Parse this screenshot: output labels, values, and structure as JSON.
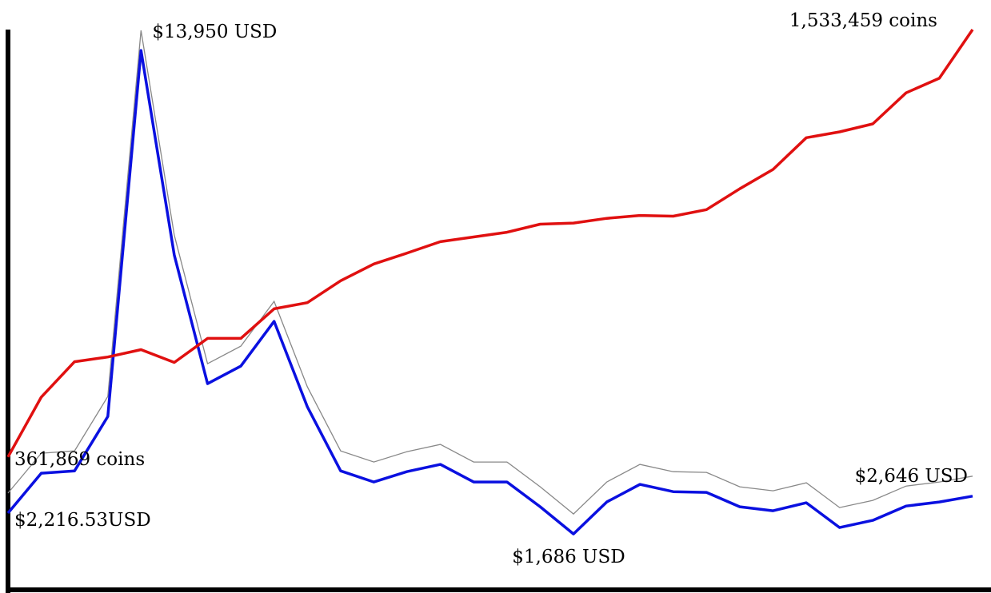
{
  "chart_data": {
    "type": "line",
    "categories": [
      null,
      null,
      null,
      null,
      null,
      null,
      null,
      null,
      null,
      null,
      null,
      null,
      null,
      null,
      null,
      null,
      null,
      null,
      null,
      null,
      null,
      null,
      null,
      null,
      null,
      null,
      null,
      null,
      null,
      null
    ],
    "series": [
      {
        "color": "#e01010",
        "axis": "y2",
        "values": [
          361869,
          526000,
          623000,
          636000,
          656000,
          621000,
          687000,
          687000,
          768000,
          785000,
          845000,
          891000,
          921000,
          952000,
          965000,
          978000,
          1000000,
          1003000,
          1016000,
          1024000,
          1022000,
          1040000,
          1097000,
          1150000,
          1237000,
          1253000,
          1275000,
          1360000,
          1400000,
          1533459
        ],
        "value_labels": [
          "361,869 coins",
          null,
          null,
          null,
          null,
          null,
          null,
          null,
          null,
          null,
          null,
          null,
          null,
          null,
          null,
          null,
          null,
          null,
          null,
          null,
          null,
          null,
          null,
          null,
          null,
          null,
          null,
          null,
          null,
          "1,533,459 coins"
        ]
      },
      {
        "color": "#0a10e0",
        "values": [
          2216.53,
          3227,
          3287,
          4666,
          13950,
          8760,
          5497,
          5943,
          7078,
          4909,
          3287,
          3004,
          3267,
          3450,
          3004,
          3004,
          2375,
          1686,
          2497,
          2943,
          2760,
          2740,
          2375,
          2274,
          2477,
          1848,
          2031,
          2395,
          2497,
          2646
        ],
        "value_labels": [
          "$2,216.53USD",
          null,
          null,
          null,
          "$13,950 USD",
          null,
          null,
          null,
          null,
          null,
          null,
          null,
          null,
          null,
          null,
          null,
          null,
          "$1,686 USD",
          null,
          null,
          null,
          null,
          null,
          null,
          null,
          null,
          null,
          null,
          null,
          "$2,646 USD"
        ]
      }
    ],
    "ylim": [
      290,
      14480
    ],
    "y2lim": [
      0,
      1533459
    ]
  }
}
